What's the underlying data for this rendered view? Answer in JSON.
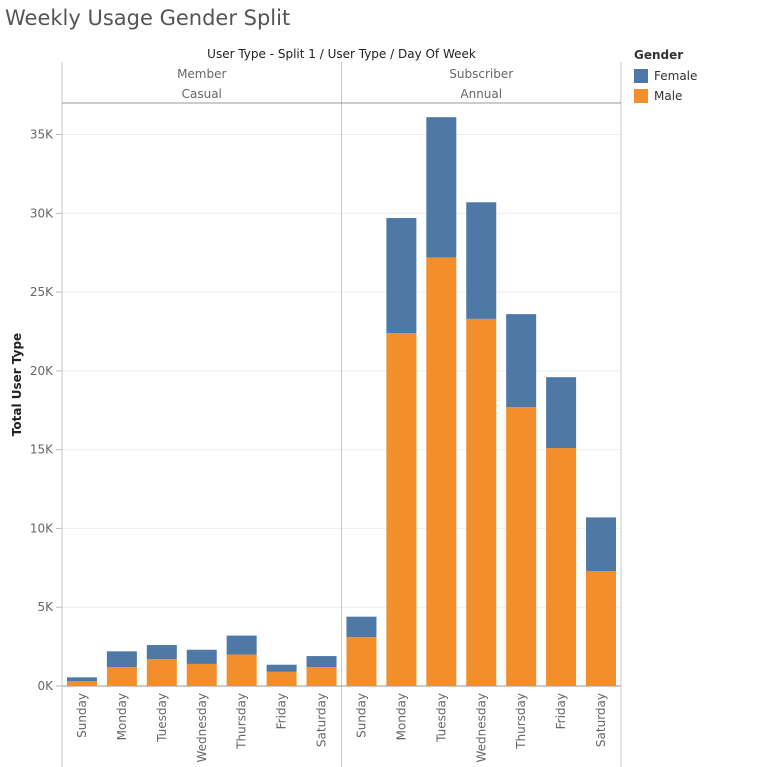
{
  "title": "Weekly Usage Gender Split",
  "colors": {
    "female": "#4e79a7",
    "male": "#f28e2b",
    "grid": "#eeeeee",
    "divider": "#c8c8c8"
  },
  "legend": {
    "title": "Gender",
    "items": [
      {
        "label": "Female",
        "color": "#4e79a7"
      },
      {
        "label": "Male",
        "color": "#f28e2b"
      }
    ]
  },
  "chart_data": {
    "type": "bar",
    "stacked": true,
    "title": "Weekly Usage Gender Split",
    "header_title": "User Type - Split 1  /  User Type  /  Day Of Week",
    "ylabel": "Total User Type",
    "ylim": [
      0,
      37000
    ],
    "yticks": [
      0,
      5000,
      10000,
      15000,
      20000,
      25000,
      30000,
      35000
    ],
    "ytick_labels": [
      "0K",
      "5K",
      "10K",
      "15K",
      "20K",
      "25K",
      "30K",
      "35K"
    ],
    "legend_position": "top-right",
    "panels": [
      {
        "header1": "Member",
        "header2": "Casual",
        "categories": [
          "Sunday",
          "Monday",
          "Tuesday",
          "Wednesday",
          "Thursday",
          "Friday",
          "Saturday"
        ],
        "series": [
          {
            "name": "Male",
            "values": [
              300,
              1200,
              1700,
              1400,
              2000,
              900,
              1200
            ]
          },
          {
            "name": "Female",
            "values": [
              250,
              1000,
              900,
              900,
              1200,
              450,
              700
            ]
          }
        ]
      },
      {
        "header1": "Subscriber",
        "header2": "Annual",
        "categories": [
          "Sunday",
          "Monday",
          "Tuesday",
          "Wednesday",
          "Thursday",
          "Friday",
          "Saturday"
        ],
        "series": [
          {
            "name": "Male",
            "values": [
              3100,
              22400,
              27200,
              23300,
              17700,
              15100,
              7300
            ]
          },
          {
            "name": "Female",
            "values": [
              1300,
              7300,
              8900,
              7400,
              5900,
              4500,
              3400
            ]
          }
        ]
      }
    ]
  }
}
